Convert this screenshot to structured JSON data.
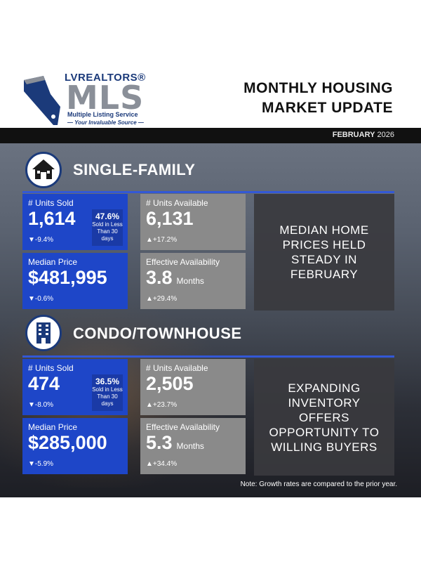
{
  "brand": {
    "top": "LVREALTORS®",
    "mls": "MLS",
    "sub": "Multiple Listing Service",
    "tagline": "— Your Invaluable Source —"
  },
  "title_line1": "MONTHLY HOUSING",
  "title_line2": "MARKET UPDATE",
  "date_month": "FEBRUARY",
  "date_year": "2026",
  "single_family": {
    "title": "SINGLE-FAMILY",
    "icon": "house-icon",
    "units_sold": {
      "label": "# Units Sold",
      "value": "1,614",
      "change": "▼-9.4%",
      "pct": "47.6%",
      "pct_text": "Sold in Less Than 30 days"
    },
    "units_available": {
      "label": "# Units Available",
      "value": "6,131",
      "change": "▲+17.2%"
    },
    "median_price": {
      "label": "Median Price",
      "value": "$481,995",
      "change": "▼-0.6%"
    },
    "effective_availability": {
      "label": "Effective Availability",
      "value": "3.8",
      "unit": "Months",
      "change": "▲+29.4%"
    },
    "headline": "MEDIAN HOME PRICES HELD STEADY IN FEBRUARY"
  },
  "condo": {
    "title": "CONDO/TOWNHOUSE",
    "icon": "building-icon",
    "units_sold": {
      "label": "# Units Sold",
      "value": "474",
      "change": "▼-8.0%",
      "pct": "36.5%",
      "pct_text": "Sold in Less Than 30 days"
    },
    "units_available": {
      "label": "# Units Available",
      "value": "2,505",
      "change": "▲+23.7%"
    },
    "median_price": {
      "label": "Median Price",
      "value": "$285,000",
      "change": "▼-5.9%"
    },
    "effective_availability": {
      "label": "Effective Availability",
      "value": "5.3",
      "unit": "Months",
      "change": "▲+34.4%"
    },
    "headline": "EXPANDING INVENTORY OFFERS OPPORTUNITY  TO WILLING BUYERS"
  },
  "note": "Note: Growth rates are compared to the prior year.",
  "colors": {
    "accent_blue": "#1e46c8",
    "brand_navy": "#1b3a7a",
    "gray_card": "#8a8a8a",
    "dark_bar": "#111111"
  }
}
